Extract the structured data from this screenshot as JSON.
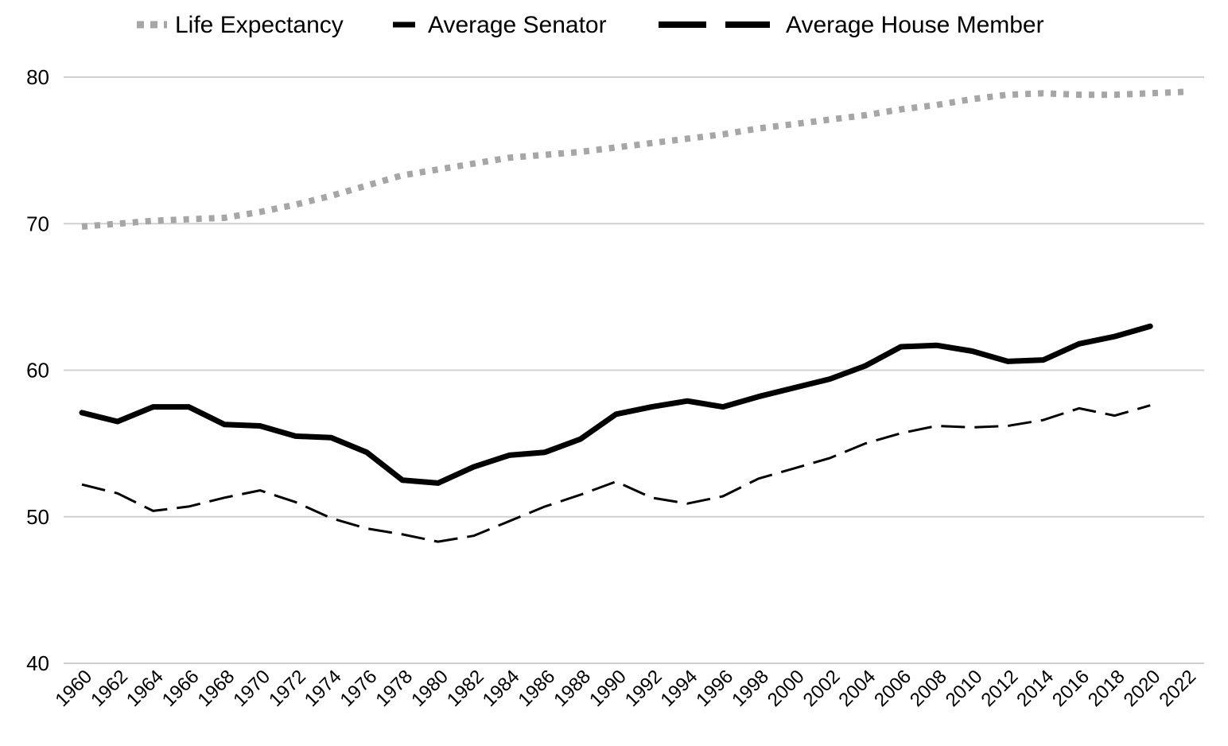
{
  "chart_data": {
    "type": "line",
    "title": "",
    "xlabel": "",
    "ylabel": "",
    "ylim": [
      40,
      80
    ],
    "yticks": [
      40,
      50,
      60,
      70,
      80
    ],
    "xlim": [
      1960,
      2022
    ],
    "xticks": [
      "1960",
      "1962",
      "1964",
      "1966",
      "1968",
      "1970",
      "1972",
      "1974",
      "1976",
      "1978",
      "1980",
      "1982",
      "1984",
      "1986",
      "1988",
      "1990",
      "1992",
      "1994",
      "1996",
      "1998",
      "2000",
      "2002",
      "2004",
      "2006",
      "2008",
      "2010",
      "2012",
      "2014",
      "2016",
      "2018",
      "2020",
      "2022"
    ],
    "grid": "horizontal",
    "legend_position": "top",
    "series": [
      {
        "name": "Life Expectancy",
        "style": "dotted",
        "color": "#a6a6a6",
        "x": [
          1960,
          1962,
          1964,
          1966,
          1968,
          1970,
          1972,
          1974,
          1976,
          1978,
          1980,
          1982,
          1984,
          1986,
          1988,
          1990,
          1992,
          1994,
          1996,
          1998,
          2000,
          2002,
          2004,
          2006,
          2008,
          2010,
          2012,
          2014,
          2016,
          2018,
          2020,
          2022
        ],
        "values": [
          69.8,
          70.0,
          70.2,
          70.3,
          70.4,
          70.8,
          71.3,
          71.9,
          72.6,
          73.3,
          73.7,
          74.1,
          74.5,
          74.7,
          74.9,
          75.2,
          75.5,
          75.8,
          76.1,
          76.5,
          76.8,
          77.1,
          77.4,
          77.8,
          78.1,
          78.5,
          78.8,
          78.9,
          78.8,
          78.8,
          78.9,
          79.0
        ]
      },
      {
        "name": "Average Senator",
        "style": "dashed",
        "color": "#000000",
        "x": [
          1960,
          1962,
          1964,
          1966,
          1968,
          1970,
          1972,
          1974,
          1976,
          1978,
          1980,
          1982,
          1984,
          1986,
          1988,
          1990,
          1992,
          1994,
          1996,
          1998,
          2000,
          2002,
          2004,
          2006,
          2008,
          2010,
          2012,
          2014,
          2016,
          2018,
          2020
        ],
        "values": [
          52.2,
          51.6,
          50.4,
          50.7,
          51.3,
          51.8,
          51.0,
          49.9,
          49.2,
          48.8,
          48.3,
          48.7,
          49.7,
          50.7,
          51.5,
          52.4,
          51.3,
          50.9,
          51.4,
          52.6,
          53.3,
          54.0,
          55.0,
          55.7,
          56.2,
          56.1,
          56.2,
          56.6,
          57.4,
          56.9,
          57.6
        ]
      },
      {
        "name": "Average House Member",
        "style": "solid",
        "color": "#000000",
        "x": [
          1960,
          1962,
          1964,
          1966,
          1968,
          1970,
          1972,
          1974,
          1976,
          1978,
          1980,
          1982,
          1984,
          1986,
          1988,
          1990,
          1992,
          1994,
          1996,
          1998,
          2000,
          2002,
          2004,
          2006,
          2008,
          2010,
          2012,
          2014,
          2016,
          2018,
          2020
        ],
        "values": [
          57.1,
          56.5,
          57.5,
          57.5,
          56.3,
          56.2,
          55.5,
          55.4,
          54.4,
          52.5,
          52.3,
          53.4,
          54.2,
          54.4,
          55.3,
          57.0,
          57.5,
          57.9,
          57.5,
          58.2,
          58.8,
          59.4,
          60.3,
          61.6,
          61.7,
          61.3,
          60.6,
          60.7,
          61.8,
          62.3,
          63.0
        ]
      }
    ]
  }
}
